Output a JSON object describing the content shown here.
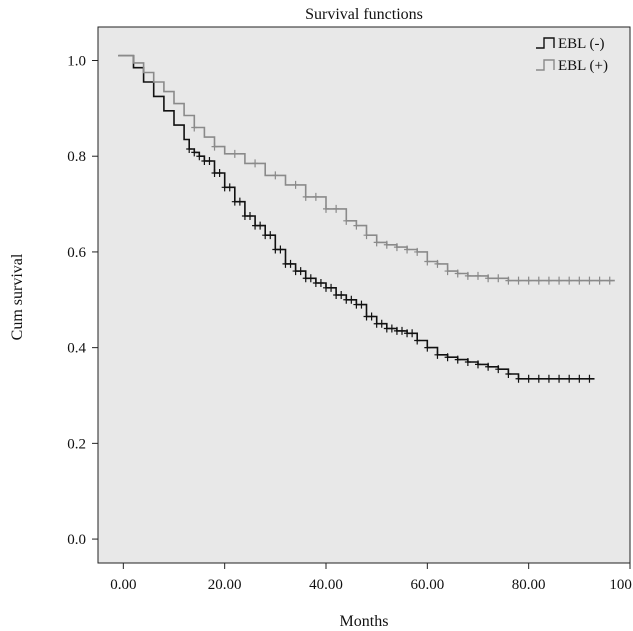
{
  "chart_data": {
    "type": "line",
    "title": "Survival functions",
    "xlabel": "Months",
    "ylabel": "Cum survival",
    "xlim": [
      -5,
      100
    ],
    "ylim": [
      -0.05,
      1.07
    ],
    "xticks": [
      0,
      20,
      40,
      60,
      80,
      100
    ],
    "xtick_labels": [
      "0.00",
      "20.00",
      "40.00",
      "60.00",
      "80.00",
      "100.00"
    ],
    "yticks": [
      0.0,
      0.2,
      0.4,
      0.6,
      0.8,
      1.0
    ],
    "ytick_labels": [
      "0.0",
      "0.2",
      "0.4",
      "0.6",
      "0.8",
      "1.0"
    ],
    "grid": false,
    "legend_position": "top-right",
    "plot_background": "#e8e8e8",
    "series": [
      {
        "name": "EBL (-)",
        "color": "#111111",
        "x": [
          -1,
          1,
          2,
          4,
          6,
          8,
          10,
          12,
          13,
          14,
          15,
          16,
          18,
          20,
          22,
          24,
          26,
          28,
          30,
          32,
          34,
          36,
          38,
          40,
          42,
          44,
          46,
          48,
          50,
          52,
          54,
          56,
          58,
          60,
          62,
          64,
          66,
          68,
          70,
          72,
          74,
          76,
          78,
          80,
          84,
          88,
          93
        ],
        "y": [
          1.01,
          1.01,
          0.985,
          0.955,
          0.925,
          0.895,
          0.865,
          0.835,
          0.815,
          0.808,
          0.8,
          0.79,
          0.765,
          0.735,
          0.705,
          0.675,
          0.655,
          0.635,
          0.605,
          0.575,
          0.56,
          0.545,
          0.535,
          0.525,
          0.51,
          0.5,
          0.49,
          0.465,
          0.45,
          0.44,
          0.435,
          0.43,
          0.415,
          0.4,
          0.385,
          0.38,
          0.375,
          0.37,
          0.365,
          0.36,
          0.355,
          0.345,
          0.335,
          0.335,
          0.335,
          0.335,
          0.335
        ]
      },
      {
        "name": "EBL (+)",
        "color": "#8a8a8a",
        "x": [
          -1,
          1,
          2,
          4,
          6,
          8,
          10,
          12,
          14,
          16,
          18,
          20,
          24,
          28,
          32,
          36,
          40,
          44,
          46,
          48,
          50,
          52,
          54,
          56,
          58,
          60,
          62,
          64,
          66,
          68,
          72,
          76,
          80,
          85,
          90,
          97
        ],
        "y": [
          1.01,
          1.01,
          0.995,
          0.975,
          0.955,
          0.935,
          0.91,
          0.885,
          0.86,
          0.84,
          0.82,
          0.805,
          0.785,
          0.76,
          0.74,
          0.715,
          0.69,
          0.665,
          0.655,
          0.635,
          0.62,
          0.615,
          0.61,
          0.605,
          0.6,
          0.58,
          0.575,
          0.56,
          0.555,
          0.55,
          0.545,
          0.54,
          0.54,
          0.54,
          0.54,
          0.54
        ]
      }
    ],
    "censor_marks": [
      {
        "series": "EBL (-)",
        "x": [
          13,
          14,
          15,
          16,
          17,
          18,
          19,
          20,
          21,
          22,
          23,
          24,
          25,
          26,
          27,
          28,
          29,
          30,
          31,
          32,
          33,
          34,
          35,
          36,
          37,
          38,
          39,
          40,
          41,
          42,
          43,
          44,
          45,
          46,
          47,
          48,
          49,
          50,
          51,
          52,
          53,
          54,
          55,
          56,
          57,
          58,
          60,
          62,
          64,
          66,
          68,
          70,
          72,
          74,
          76,
          78,
          80,
          82,
          84,
          86,
          88,
          90,
          92
        ]
      },
      {
        "series": "EBL (+)",
        "x": [
          14,
          18,
          22,
          26,
          30,
          34,
          36,
          38,
          40,
          42,
          44,
          46,
          48,
          50,
          52,
          54,
          56,
          58,
          60,
          62,
          64,
          66,
          68,
          70,
          72,
          74,
          76,
          78,
          80,
          82,
          84,
          86,
          88,
          90,
          92,
          94,
          96
        ]
      }
    ]
  }
}
